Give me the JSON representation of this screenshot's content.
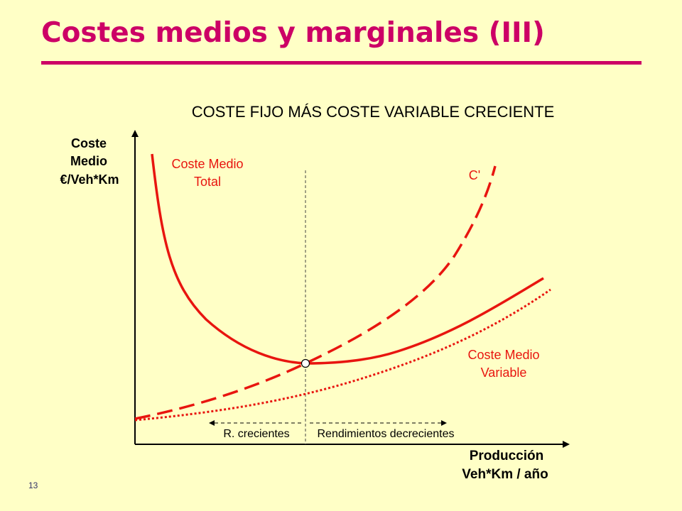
{
  "slide": {
    "title": "Costes medios y marginales (III)",
    "page_number": "13"
  },
  "diagram": {
    "heading": "COSTE FIJO MÁS COSTE VARIABLE CRECIENTE",
    "y_axis_label": [
      "Coste",
      "Medio",
      "€/Veh*Km"
    ],
    "x_axis_label": [
      "Producción",
      "Veh*Km / año"
    ],
    "curves": {
      "total_average_cost": [
        "Coste Medio",
        "Total"
      ],
      "marginal_cost": "C'",
      "variable_average_cost": [
        "Coste Medio",
        "Variable"
      ]
    },
    "regions": {
      "increasing_returns": "R. crecientes",
      "decreasing_returns": "Rendimientos decrecientes"
    },
    "colors": {
      "curve": "#E8150F",
      "title": "#CC0066",
      "background": "#FFFFC6",
      "axis": "#000000"
    }
  }
}
